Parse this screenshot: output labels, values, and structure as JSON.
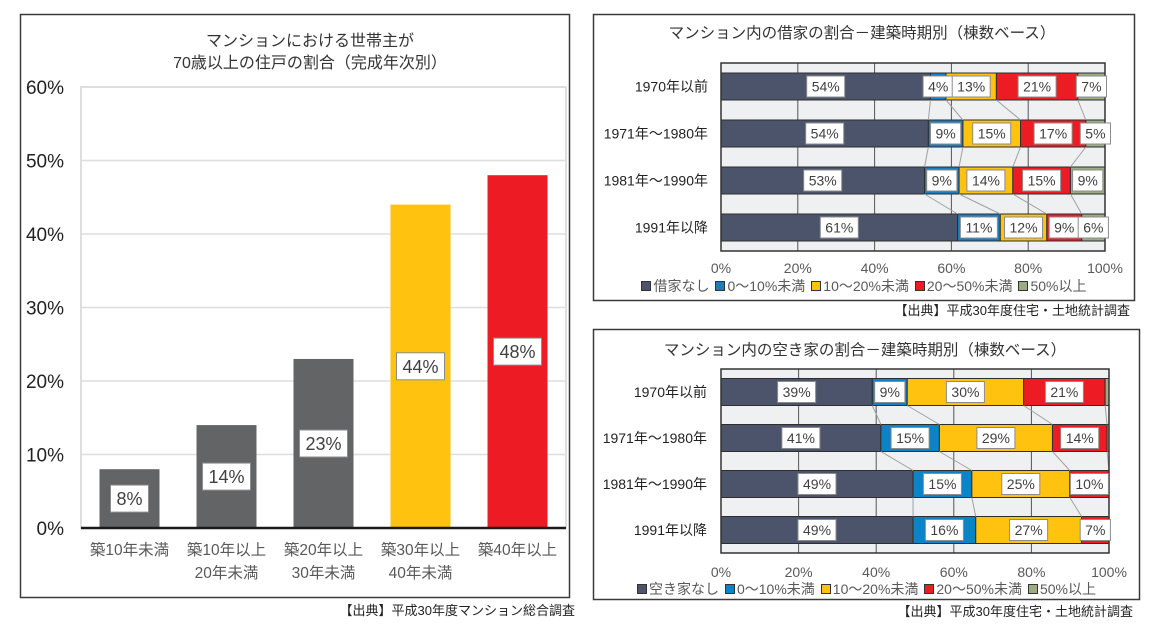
{
  "chart_data": [
    {
      "type": "bar",
      "orientation": "vertical",
      "stacked": false,
      "title": "マンションにおける世帯主が70歳以上の住戸の割合（完成年次別）",
      "title_lines": [
        "マンションにおける世帯主が",
        "70歳以上の住戸の割合（完成年次別）"
      ],
      "categories": [
        {
          "line1": "築10年未満",
          "line2": ""
        },
        {
          "line1": "築10年以上",
          "line2": "20年未満"
        },
        {
          "line1": "築20年以上",
          "line2": "30年未満"
        },
        {
          "line1": "築30年以上",
          "line2": "40年未満"
        },
        {
          "line1": "築40年以上",
          "line2": ""
        }
      ],
      "values": [
        8,
        14,
        23,
        44,
        48
      ],
      "data_labels": [
        "8%",
        "14%",
        "23%",
        "44%",
        "48%"
      ],
      "bar_colors": [
        "#636466",
        "#636466",
        "#636466",
        "#ffc20e",
        "#ed1c24"
      ],
      "xlabel": "",
      "ylabel": "",
      "ylim": [
        0,
        60
      ],
      "yticks": [
        0,
        10,
        20,
        30,
        40,
        50,
        60
      ],
      "ytick_labels": [
        "0%",
        "10%",
        "20%",
        "30%",
        "40%",
        "50%",
        "60%"
      ],
      "grid": true,
      "legend": "none",
      "source": "【出典】平成30年度マンション総合調査"
    },
    {
      "type": "bar",
      "orientation": "horizontal",
      "stacked": true,
      "title": "マンション内の借家の割合－建築時期別（棟数ベース）",
      "categories": [
        "1970年以前",
        "1971年～1980年",
        "1981年～1990年",
        "1991年以降"
      ],
      "series": [
        {
          "name": "借家なし",
          "color": "#4b546b",
          "values": [
            54,
            54,
            53,
            61
          ],
          "labels": [
            "54%",
            "54%",
            "53%",
            "61%"
          ]
        },
        {
          "name": "0～10%未満",
          "color": "#1a7cc1",
          "values": [
            4,
            9,
            9,
            11
          ],
          "labels": [
            "4%",
            "9%",
            "9%",
            "11%"
          ]
        },
        {
          "name": "10～20%未満",
          "color": "#ffc20e",
          "values": [
            13,
            15,
            14,
            12
          ],
          "labels": [
            "13%",
            "15%",
            "14%",
            "12%"
          ]
        },
        {
          "name": "20～50%未満",
          "color": "#ed1c24",
          "values": [
            21,
            17,
            15,
            9
          ],
          "labels": [
            "21%",
            "17%",
            "15%",
            "9%"
          ]
        },
        {
          "name": "50%以上",
          "color": "#9bab82",
          "values": [
            7,
            5,
            9,
            6
          ],
          "labels": [
            "7%",
            "5%",
            "9%",
            "6%"
          ]
        }
      ],
      "xlabel": "",
      "ylabel": "",
      "xlim": [
        0,
        100
      ],
      "xticks": [
        0,
        20,
        40,
        60,
        80,
        100
      ],
      "xtick_labels": [
        "0%",
        "20%",
        "40%",
        "60%",
        "80%",
        "100%"
      ],
      "grid": true,
      "series_lines": true,
      "legend": "bottom",
      "source": "【出典】平成30年度住宅・土地統計調査"
    },
    {
      "type": "bar",
      "orientation": "horizontal",
      "stacked": true,
      "title": "マンション内の空き家の割合－建築時期別（棟数ベース）",
      "categories": [
        "1970年以前",
        "1971年～1980年",
        "1981年～1990年",
        "1991年以降"
      ],
      "series": [
        {
          "name": "空き家なし",
          "color": "#4b546b",
          "values": [
            39,
            41,
            49,
            49
          ],
          "labels": [
            "39%",
            "41%",
            "49%",
            "49%"
          ]
        },
        {
          "name": "0～10%未満",
          "color": "#0a84c6",
          "values": [
            9,
            15,
            15,
            16
          ],
          "labels": [
            "9%",
            "15%",
            "15%",
            "16%"
          ]
        },
        {
          "name": "10～20%未満",
          "color": "#ffc20e",
          "values": [
            30,
            29,
            25,
            27
          ],
          "labels": [
            "30%",
            "29%",
            "25%",
            "27%"
          ]
        },
        {
          "name": "20～50%未満",
          "color": "#ed1c24",
          "values": [
            21,
            14,
            10,
            7
          ],
          "labels": [
            "21%",
            "14%",
            "10%",
            "7%"
          ]
        },
        {
          "name": "50%以上",
          "color": "#9bab82",
          "values": [
            1,
            0.5,
            0,
            0
          ],
          "labels": [
            null,
            null,
            null,
            null
          ]
        }
      ],
      "xlabel": "",
      "ylabel": "",
      "xlim": [
        0,
        100
      ],
      "xticks": [
        0,
        20,
        40,
        60,
        80,
        100
      ],
      "xtick_labels": [
        "0%",
        "20%",
        "40%",
        "60%",
        "80%",
        "100%"
      ],
      "grid": true,
      "series_lines": true,
      "legend": "bottom",
      "source": "【出典】平成30年度住宅・土地統計調査"
    }
  ]
}
